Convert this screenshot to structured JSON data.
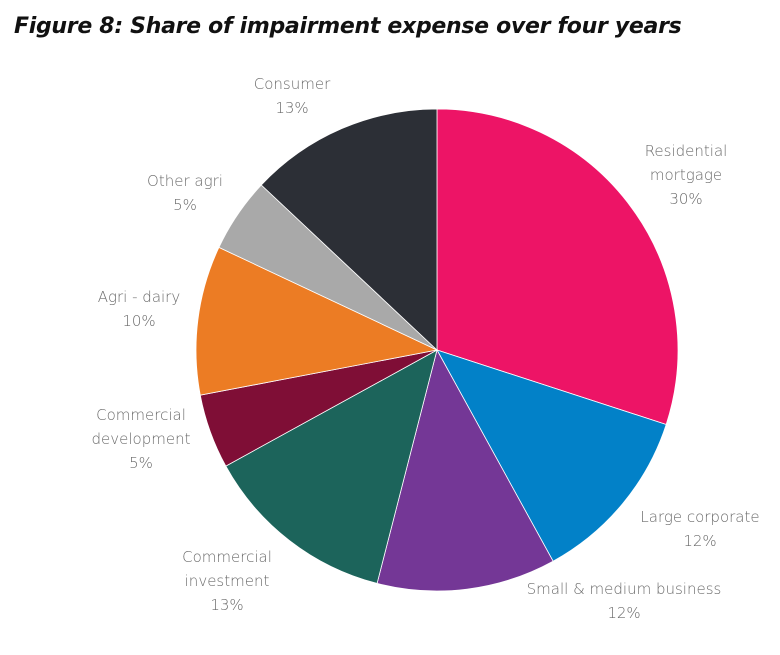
{
  "chart_data": {
    "type": "pie",
    "title": "Figure 8: Share of impairment expense over four years",
    "start_angle": "12 o'clock",
    "direction": "clockwise",
    "slices": [
      {
        "label": "Residential mortgage",
        "label_lines": [
          "Residential",
          "mortgage",
          "30%"
        ],
        "value": 30,
        "value_label": "30%",
        "color": "#ED1466"
      },
      {
        "label": "Large corporate",
        "label_lines": [
          "Large corporate",
          "12%"
        ],
        "value": 12,
        "value_label": "12%",
        "color": "#0281C8"
      },
      {
        "label": "Small & medium business",
        "label_lines": [
          "Small & medium business",
          "12%"
        ],
        "value": 12,
        "value_label": "12%",
        "color": "#743796"
      },
      {
        "label": "Commercial investment",
        "label_lines": [
          "Commercial",
          "investment",
          "13%"
        ],
        "value": 13,
        "value_label": "13%",
        "color": "#1C645B"
      },
      {
        "label": "Commercial development",
        "label_lines": [
          "Commercial",
          "development",
          "5%"
        ],
        "value": 5,
        "value_label": "5%",
        "color": "#7F0E36"
      },
      {
        "label": "Agri - dairy",
        "label_lines": [
          "Agri - dairy",
          "10%"
        ],
        "value": 10,
        "value_label": "10%",
        "color": "#EC7C24"
      },
      {
        "label": "Other agri",
        "label_lines": [
          "Other agri",
          "5%"
        ],
        "value": 5,
        "value_label": "5%",
        "color": "#A9A9A9"
      },
      {
        "label": "Consumer",
        "label_lines": [
          "Consumer",
          "13%"
        ],
        "value": 13,
        "value_label": "13%",
        "color": "#2C2F36"
      }
    ],
    "legend": "none (labels outside slices)"
  }
}
